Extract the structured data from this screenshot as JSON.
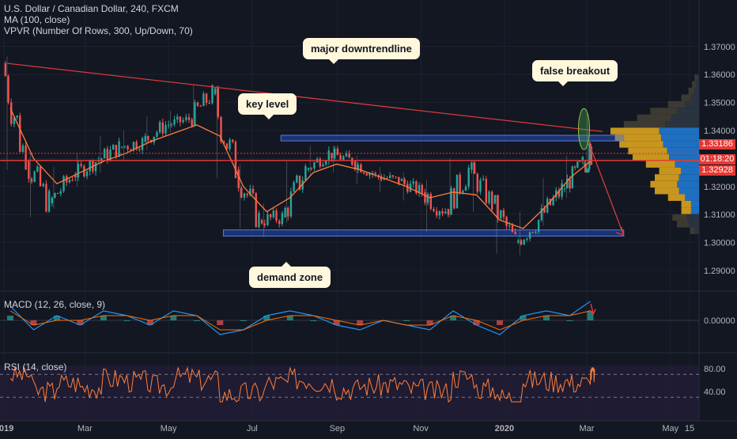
{
  "chart_data": [
    {
      "type": "candlestick",
      "title": "U.S. Dollar / Canadian Dollar, 240, FXCM",
      "indicators": [
        "MA (100, close)",
        "VPVR (Number Of Rows, 300, Up/Down, 70)"
      ],
      "x_ticks": [
        "2019",
        "Mar",
        "May",
        "Jul",
        "Sep",
        "Nov",
        "2020",
        "Mar",
        "May",
        "15"
      ],
      "y_ticks": [
        1.29,
        1.3,
        1.31,
        1.32,
        1.33,
        1.34,
        1.35,
        1.36,
        1.37
      ],
      "ylim": [
        1.287,
        1.375
      ],
      "price_labels": [
        "1.33186",
        "01:18:20",
        "1.32928"
      ],
      "key_levels": {
        "resistance_band": [
          1.3363,
          1.3383
        ],
        "demand_band": [
          1.3023,
          1.3045
        ],
        "support_line": 1.3293
      },
      "downtrendline": [
        {
          "x": "2019-01-03",
          "y": 1.364
        },
        {
          "x": "2020-02-27",
          "y": 1.3395
        }
      ],
      "projection_arrow": [
        {
          "x": "2020-02-27",
          "y": 1.334
        },
        {
          "x": "2020-03-28",
          "y": 1.3025
        }
      ],
      "annotations": [
        "major downtrendline",
        "key level",
        "false breakout",
        "demand zone"
      ],
      "series": [
        {
          "name": "USDCAD",
          "dates": [
            "2019-01-01",
            "2019-01-18",
            "2019-02-04",
            "2019-02-21",
            "2019-03-10",
            "2019-03-27",
            "2019-04-13",
            "2019-04-30",
            "2019-05-17",
            "2019-06-03",
            "2019-06-20",
            "2019-07-07",
            "2019-07-24",
            "2019-08-10",
            "2019-08-27",
            "2019-09-13",
            "2019-09-30",
            "2019-10-17",
            "2019-11-03",
            "2019-11-20",
            "2019-12-07",
            "2019-12-24",
            "2020-01-10",
            "2020-01-27",
            "2020-02-13",
            "2020-02-28"
          ],
          "open": [
            1.364,
            1.329,
            1.314,
            1.324,
            1.329,
            1.334,
            1.336,
            1.342,
            1.344,
            1.353,
            1.326,
            1.308,
            1.309,
            1.326,
            1.332,
            1.329,
            1.324,
            1.322,
            1.318,
            1.312,
            1.326,
            1.314,
            1.3,
            1.308,
            1.319,
            1.328
          ],
          "close": [
            1.329,
            1.314,
            1.324,
            1.329,
            1.334,
            1.336,
            1.342,
            1.344,
            1.353,
            1.326,
            1.308,
            1.309,
            1.326,
            1.332,
            1.329,
            1.324,
            1.322,
            1.318,
            1.312,
            1.326,
            1.314,
            1.3,
            1.308,
            1.319,
            1.328,
            1.3319
          ],
          "high": [
            1.3665,
            1.332,
            1.327,
            1.332,
            1.338,
            1.34,
            1.345,
            1.347,
            1.3565,
            1.356,
            1.328,
            1.314,
            1.329,
            1.3345,
            1.3345,
            1.331,
            1.327,
            1.325,
            1.3225,
            1.33,
            1.329,
            1.317,
            1.311,
            1.323,
            1.331,
            1.3466
          ],
          "low": [
            1.326,
            1.309,
            1.312,
            1.32,
            1.325,
            1.329,
            1.333,
            1.339,
            1.341,
            1.323,
            1.305,
            1.302,
            1.307,
            1.324,
            1.325,
            1.321,
            1.318,
            1.315,
            1.304,
            1.309,
            1.311,
            1.296,
            1.2955,
            1.306,
            1.316,
            1.325
          ]
        },
        {
          "name": "MA (100, close)",
          "values": [
            1.348,
            1.33,
            1.321,
            1.325,
            1.329,
            1.332,
            1.336,
            1.339,
            1.342,
            1.338,
            1.32,
            1.311,
            1.316,
            1.325,
            1.328,
            1.326,
            1.323,
            1.32,
            1.316,
            1.318,
            1.317,
            1.308,
            1.305,
            1.313,
            1.323,
            1.329
          ]
        }
      ],
      "volume_profile": {
        "price_range": [
          1.303,
          1.36
        ],
        "rows": [
          0.05,
          0.08,
          0.12,
          0.2,
          0.35,
          0.55,
          0.7,
          0.85,
          1.0,
          0.95,
          0.9,
          0.8,
          0.75,
          0.6,
          0.45,
          0.5,
          0.55,
          0.5,
          0.35,
          0.2,
          0.2,
          0.3,
          0.25,
          0.1
        ],
        "colors": {
          "up": "#1e6fbf",
          "down": "#c8961e",
          "outside": "#3c3a33"
        }
      },
      "colors": {
        "up": "#26a69a",
        "down": "#ef5350",
        "ma": "#ff7f3a",
        "trendline": "#d63b3b",
        "zone": "#2962ff"
      }
    },
    {
      "type": "line",
      "title": "MACD (12, 26, close, 9)",
      "y_ticks": [
        0.0
      ],
      "y_tick_labels": [
        "0.00000"
      ],
      "ylim": [
        -0.005,
        0.005
      ],
      "series": [
        {
          "name": "MACD",
          "values": [
            0.003,
            -0.002,
            0.001,
            -0.001,
            0.002,
            0.001,
            -0.001,
            0.002,
            0.001,
            -0.003,
            -0.002,
            0.001,
            0.002,
            0.001,
            -0.001,
            -0.002,
            0.0,
            -0.001,
            -0.002,
            0.002,
            -0.001,
            -0.003,
            0.001,
            0.002,
            0.001,
            0.004
          ]
        },
        {
          "name": "Signal",
          "values": [
            0.002,
            -0.001,
            0.0,
            0.0,
            0.001,
            0.001,
            0.0,
            0.001,
            0.001,
            -0.002,
            -0.002,
            0.0,
            0.001,
            0.001,
            0.0,
            -0.001,
            0.0,
            -0.001,
            -0.001,
            0.001,
            0.0,
            -0.002,
            0.0,
            0.001,
            0.001,
            0.002
          ]
        }
      ]
    },
    {
      "type": "line",
      "title": "RSI (14, close)",
      "y_ticks": [
        40,
        80
      ],
      "y_tick_labels": [
        "40.00",
        "80.00"
      ],
      "ylim": [
        20,
        90
      ],
      "bands": [
        30,
        70
      ],
      "series": [
        {
          "name": "RSI",
          "values": [
            70,
            40,
            55,
            48,
            62,
            58,
            50,
            66,
            60,
            35,
            38,
            55,
            62,
            57,
            45,
            50,
            52,
            44,
            40,
            65,
            45,
            30,
            60,
            58,
            55,
            72
          ]
        }
      ]
    }
  ]
}
